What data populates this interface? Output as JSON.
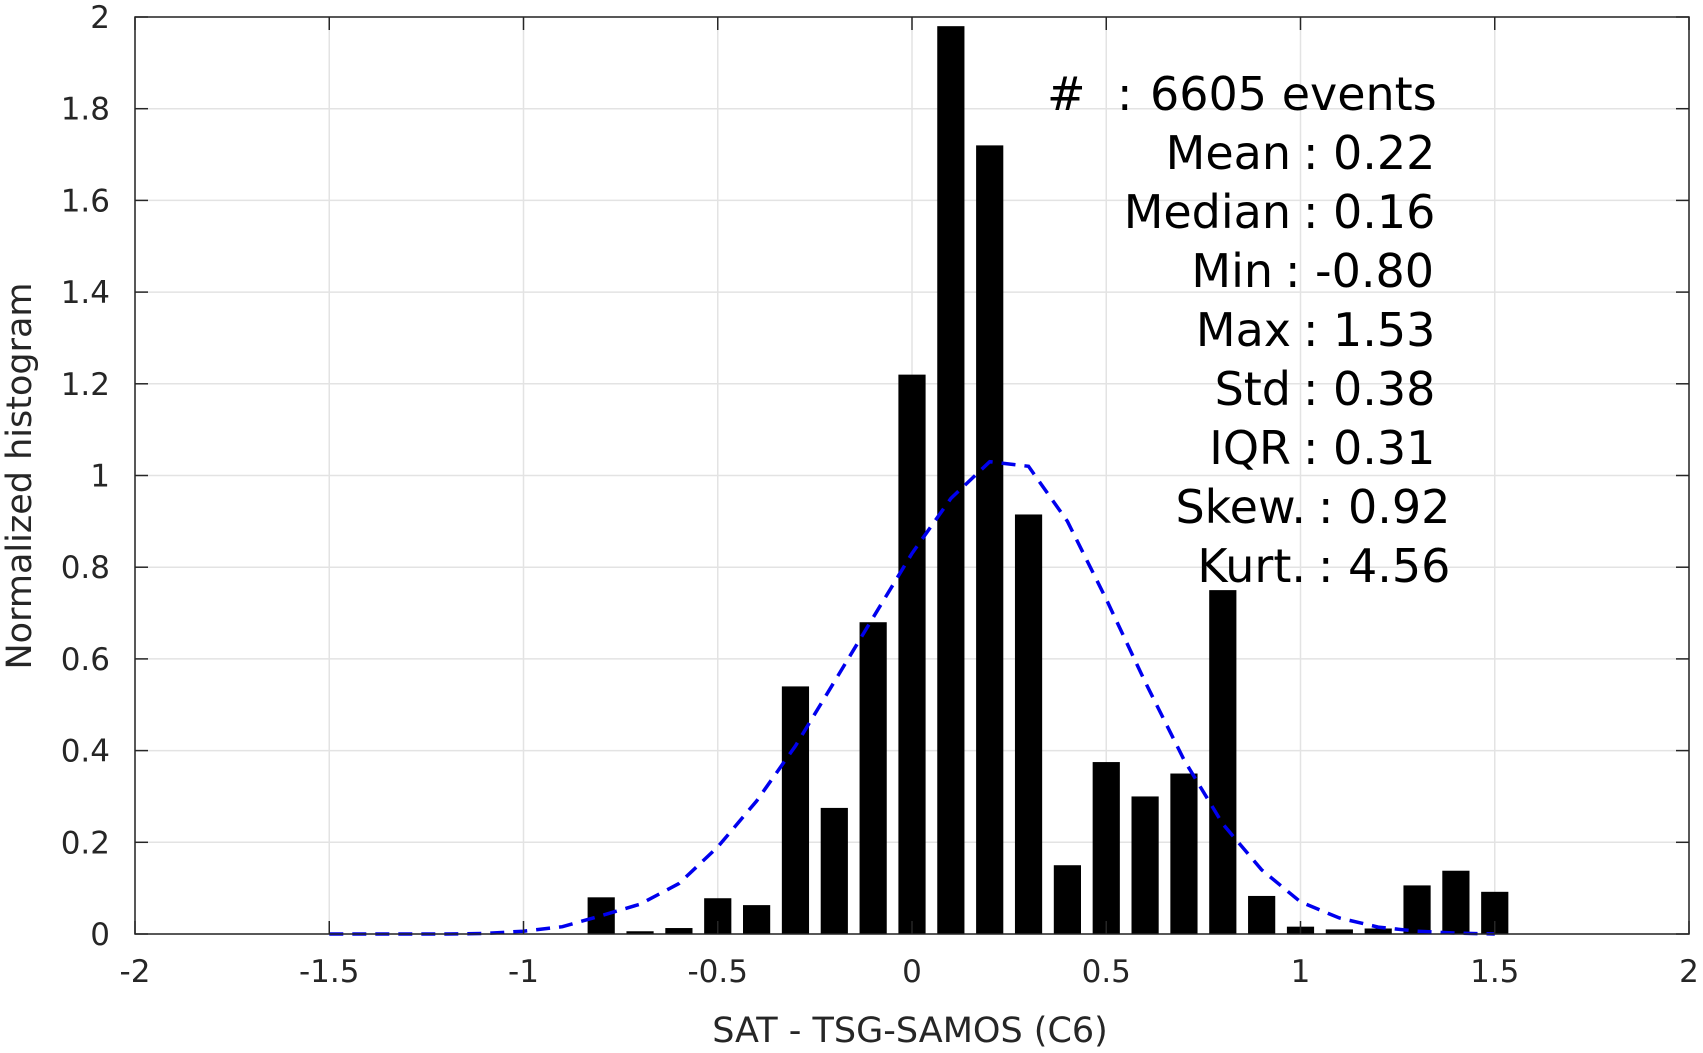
{
  "chart_data": {
    "type": "bar",
    "title": "",
    "xlabel": "SAT - TSG-SAMOS (C6)",
    "ylabel": "Normalized histogram",
    "xlim": [
      -2,
      2
    ],
    "ylim": [
      0,
      2
    ],
    "grid": true,
    "xticks": [
      -2,
      -1.5,
      -1,
      -0.5,
      0,
      0.5,
      1,
      1.5,
      2
    ],
    "xtick_labels": [
      "-2",
      "-1.5",
      "-1",
      "-0.5",
      "0",
      "0.5",
      "1",
      "1.5",
      "2"
    ],
    "yticks": [
      0,
      0.2,
      0.4,
      0.6,
      0.8,
      1,
      1.2,
      1.4,
      1.6,
      1.8,
      2
    ],
    "ytick_labels": [
      "0",
      "0.2",
      "0.4",
      "0.6",
      "0.8",
      "1",
      "1.2",
      "1.4",
      "1.6",
      "1.8",
      "2"
    ],
    "bar_width": 0.07,
    "bar_color": "#000000",
    "bars": {
      "x": [
        -0.8,
        -0.7,
        -0.6,
        -0.5,
        -0.4,
        -0.3,
        -0.2,
        -0.1,
        0.0,
        0.1,
        0.2,
        0.3,
        0.4,
        0.5,
        0.6,
        0.7,
        0.8,
        0.9,
        1.0,
        1.1,
        1.2,
        1.3,
        1.4,
        1.5
      ],
      "y": [
        0.08,
        0.006,
        0.013,
        0.078,
        0.063,
        0.54,
        0.275,
        0.68,
        1.22,
        1.98,
        1.72,
        0.915,
        0.15,
        0.375,
        0.3,
        0.35,
        0.75,
        0.083,
        0.016,
        0.01,
        0.012,
        0.106,
        0.138,
        0.092
      ]
    },
    "fit_curve": {
      "style": "dashed",
      "color": "#0000ee",
      "x": [
        -1.5,
        -1.4,
        -1.3,
        -1.2,
        -1.1,
        -1.0,
        -0.9,
        -0.8,
        -0.7,
        -0.6,
        -0.5,
        -0.4,
        -0.3,
        -0.2,
        -0.1,
        0.0,
        0.1,
        0.2,
        0.3,
        0.4,
        0.5,
        0.6,
        0.7,
        0.8,
        0.9,
        1.0,
        1.1,
        1.2,
        1.3,
        1.4,
        1.5
      ],
      "y": [
        0.0,
        0.0,
        0.0,
        0.0,
        0.001,
        0.006,
        0.016,
        0.04,
        0.065,
        0.11,
        0.19,
        0.29,
        0.41,
        0.55,
        0.69,
        0.83,
        0.95,
        1.03,
        1.02,
        0.9,
        0.73,
        0.55,
        0.38,
        0.24,
        0.14,
        0.07,
        0.035,
        0.015,
        0.006,
        0.002,
        0.0
      ]
    }
  },
  "stats": {
    "events": {
      "label": "#",
      "sep": ":",
      "value": "6605 events"
    },
    "rows": [
      {
        "label": "Mean",
        "value": "0.22"
      },
      {
        "label": "Median",
        "value": "0.16"
      },
      {
        "label": "Min",
        "value": "-0.80"
      },
      {
        "label": "Max",
        "value": "1.53"
      },
      {
        "label": "Std",
        "value": "0.38"
      },
      {
        "label": "IQR",
        "value": "0.31"
      },
      {
        "label": "Skew.",
        "value": "0.92"
      },
      {
        "label": "Kurt.",
        "value": "4.56"
      }
    ]
  }
}
